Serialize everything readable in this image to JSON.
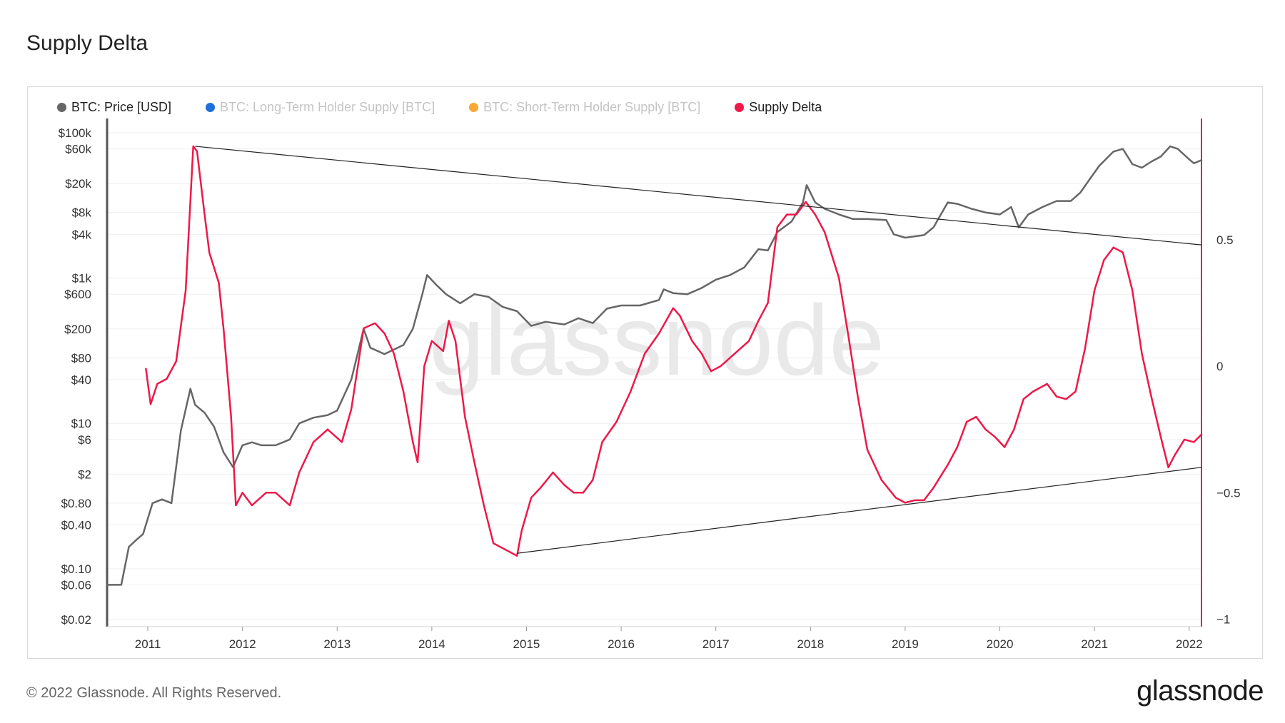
{
  "title": "Supply Delta",
  "footer": "© 2022 Glassnode. All Rights Reserved.",
  "brand": "glassnode",
  "watermark": "glassnode",
  "legend": [
    {
      "label": "BTC: Price [USD]",
      "color": "#666666",
      "active": true
    },
    {
      "label": "BTC: Long-Term Holder Supply [BTC]",
      "color": "#1e6fd9",
      "active": false
    },
    {
      "label": "BTC: Short-Term Holder Supply [BTC]",
      "color": "#f7a833",
      "active": false
    },
    {
      "label": "Supply Delta",
      "color": "#ee1849",
      "active": true
    }
  ],
  "chart_data": {
    "type": "line",
    "title": "Supply Delta",
    "x_ticks": [
      "2011",
      "2012",
      "2013",
      "2014",
      "2015",
      "2016",
      "2017",
      "2018",
      "2019",
      "2020",
      "2021",
      "2022"
    ],
    "xlim": [
      2010.57,
      2022.13
    ],
    "y_left": {
      "scale": "log",
      "ticks": [
        {
          "v": 100000,
          "label": "$100k"
        },
        {
          "v": 60000,
          "label": "$60k"
        },
        {
          "v": 20000,
          "label": "$20k"
        },
        {
          "v": 8000,
          "label": "$8k"
        },
        {
          "v": 4000,
          "label": "$4k"
        },
        {
          "v": 1000,
          "label": "$1k"
        },
        {
          "v": 600,
          "label": "$600"
        },
        {
          "v": 200,
          "label": "$200"
        },
        {
          "v": 80,
          "label": "$80"
        },
        {
          "v": 40,
          "label": "$40"
        },
        {
          "v": 10,
          "label": "$10"
        },
        {
          "v": 6,
          "label": "$6"
        },
        {
          "v": 2,
          "label": "$2"
        },
        {
          "v": 0.8,
          "label": "$0.80"
        },
        {
          "v": 0.4,
          "label": "$0.40"
        },
        {
          "v": 0.1,
          "label": "$0.10"
        },
        {
          "v": 0.06,
          "label": "$0.06"
        },
        {
          "v": 0.02,
          "label": "$0.02"
        }
      ]
    },
    "y_right": {
      "ticks": [
        {
          "v": 0.5,
          "label": "0.5"
        },
        {
          "v": 0,
          "label": "0"
        },
        {
          "v": -0.5,
          "label": "−0.5"
        },
        {
          "v": -1,
          "label": "−1"
        }
      ],
      "range": [
        -1.03,
        0.98
      ]
    },
    "series": [
      {
        "name": "BTC: Price [USD]",
        "axis": "left",
        "color": "#666666",
        "points": [
          [
            2010.57,
            0.06
          ],
          [
            2010.65,
            0.06
          ],
          [
            2010.72,
            0.06
          ],
          [
            2010.8,
            0.2
          ],
          [
            2010.88,
            0.25
          ],
          [
            2010.95,
            0.3
          ],
          [
            2011.05,
            0.8
          ],
          [
            2011.15,
            0.9
          ],
          [
            2011.25,
            0.8
          ],
          [
            2011.35,
            8
          ],
          [
            2011.45,
            30
          ],
          [
            2011.5,
            18
          ],
          [
            2011.6,
            14
          ],
          [
            2011.7,
            9
          ],
          [
            2011.8,
            4
          ],
          [
            2011.9,
            2.5
          ],
          [
            2012.0,
            5
          ],
          [
            2012.1,
            5.5
          ],
          [
            2012.2,
            5
          ],
          [
            2012.35,
            5
          ],
          [
            2012.5,
            6
          ],
          [
            2012.6,
            10
          ],
          [
            2012.75,
            12
          ],
          [
            2012.9,
            13
          ],
          [
            2013.0,
            15
          ],
          [
            2013.15,
            40
          ],
          [
            2013.28,
            200
          ],
          [
            2013.35,
            110
          ],
          [
            2013.5,
            90
          ],
          [
            2013.7,
            120
          ],
          [
            2013.8,
            200
          ],
          [
            2013.9,
            600
          ],
          [
            2013.95,
            1100
          ],
          [
            2014.05,
            800
          ],
          [
            2014.15,
            600
          ],
          [
            2014.3,
            450
          ],
          [
            2014.45,
            600
          ],
          [
            2014.6,
            550
          ],
          [
            2014.75,
            400
          ],
          [
            2014.9,
            350
          ],
          [
            2015.05,
            220
          ],
          [
            2015.2,
            250
          ],
          [
            2015.4,
            230
          ],
          [
            2015.55,
            280
          ],
          [
            2015.7,
            240
          ],
          [
            2015.85,
            380
          ],
          [
            2016.0,
            420
          ],
          [
            2016.2,
            420
          ],
          [
            2016.4,
            500
          ],
          [
            2016.45,
            700
          ],
          [
            2016.55,
            620
          ],
          [
            2016.7,
            600
          ],
          [
            2016.85,
            730
          ],
          [
            2017.0,
            950
          ],
          [
            2017.15,
            1100
          ],
          [
            2017.3,
            1400
          ],
          [
            2017.45,
            2500
          ],
          [
            2017.55,
            2400
          ],
          [
            2017.65,
            4300
          ],
          [
            2017.8,
            6000
          ],
          [
            2017.92,
            11000
          ],
          [
            2017.96,
            19000
          ],
          [
            2018.05,
            11000
          ],
          [
            2018.15,
            9000
          ],
          [
            2018.3,
            7500
          ],
          [
            2018.45,
            6500
          ],
          [
            2018.6,
            6500
          ],
          [
            2018.8,
            6300
          ],
          [
            2018.88,
            4000
          ],
          [
            2019.0,
            3600
          ],
          [
            2019.2,
            3900
          ],
          [
            2019.3,
            5000
          ],
          [
            2019.45,
            11000
          ],
          [
            2019.55,
            10500
          ],
          [
            2019.7,
            9000
          ],
          [
            2019.85,
            8000
          ],
          [
            2020.0,
            7500
          ],
          [
            2020.12,
            9500
          ],
          [
            2020.2,
            5000
          ],
          [
            2020.3,
            7500
          ],
          [
            2020.45,
            9500
          ],
          [
            2020.6,
            11500
          ],
          [
            2020.75,
            11500
          ],
          [
            2020.85,
            15000
          ],
          [
            2020.95,
            23000
          ],
          [
            2021.05,
            35000
          ],
          [
            2021.2,
            55000
          ],
          [
            2021.3,
            60000
          ],
          [
            2021.4,
            37000
          ],
          [
            2021.5,
            33000
          ],
          [
            2021.6,
            40000
          ],
          [
            2021.7,
            47000
          ],
          [
            2021.8,
            65000
          ],
          [
            2021.88,
            60000
          ],
          [
            2022.0,
            43000
          ],
          [
            2022.05,
            38000
          ],
          [
            2022.13,
            42000
          ]
        ]
      },
      {
        "name": "Supply Delta",
        "axis": "right",
        "color": "#ee1849",
        "points": [
          [
            2010.98,
            -0.01
          ],
          [
            2011.03,
            -0.15
          ],
          [
            2011.1,
            -0.07
          ],
          [
            2011.2,
            -0.05
          ],
          [
            2011.3,
            0.02
          ],
          [
            2011.4,
            0.3
          ],
          [
            2011.48,
            0.87
          ],
          [
            2011.52,
            0.85
          ],
          [
            2011.6,
            0.6
          ],
          [
            2011.65,
            0.45
          ],
          [
            2011.75,
            0.33
          ],
          [
            2011.8,
            0.15
          ],
          [
            2011.88,
            -0.2
          ],
          [
            2011.93,
            -0.55
          ],
          [
            2012.0,
            -0.5
          ],
          [
            2012.1,
            -0.55
          ],
          [
            2012.25,
            -0.5
          ],
          [
            2012.35,
            -0.5
          ],
          [
            2012.5,
            -0.55
          ],
          [
            2012.6,
            -0.42
          ],
          [
            2012.75,
            -0.3
          ],
          [
            2012.9,
            -0.25
          ],
          [
            2013.05,
            -0.3
          ],
          [
            2013.15,
            -0.17
          ],
          [
            2013.28,
            0.15
          ],
          [
            2013.4,
            0.17
          ],
          [
            2013.5,
            0.13
          ],
          [
            2013.6,
            0.05
          ],
          [
            2013.7,
            -0.1
          ],
          [
            2013.8,
            -0.3
          ],
          [
            2013.85,
            -0.38
          ],
          [
            2013.92,
            0.0
          ],
          [
            2014.0,
            0.1
          ],
          [
            2014.12,
            0.06
          ],
          [
            2014.18,
            0.18
          ],
          [
            2014.25,
            0.1
          ],
          [
            2014.35,
            -0.2
          ],
          [
            2014.45,
            -0.38
          ],
          [
            2014.55,
            -0.55
          ],
          [
            2014.65,
            -0.7
          ],
          [
            2014.75,
            -0.72
          ],
          [
            2014.8,
            -0.73
          ],
          [
            2014.9,
            -0.75
          ],
          [
            2014.95,
            -0.65
          ],
          [
            2015.05,
            -0.52
          ],
          [
            2015.15,
            -0.48
          ],
          [
            2015.28,
            -0.42
          ],
          [
            2015.4,
            -0.47
          ],
          [
            2015.5,
            -0.5
          ],
          [
            2015.6,
            -0.5
          ],
          [
            2015.7,
            -0.45
          ],
          [
            2015.8,
            -0.3
          ],
          [
            2015.95,
            -0.22
          ],
          [
            2016.1,
            -0.1
          ],
          [
            2016.25,
            0.05
          ],
          [
            2016.4,
            0.13
          ],
          [
            2016.55,
            0.23
          ],
          [
            2016.62,
            0.2
          ],
          [
            2016.75,
            0.1
          ],
          [
            2016.85,
            0.05
          ],
          [
            2016.95,
            -0.02
          ],
          [
            2017.05,
            0.0
          ],
          [
            2017.2,
            0.05
          ],
          [
            2017.35,
            0.1
          ],
          [
            2017.45,
            0.18
          ],
          [
            2017.55,
            0.25
          ],
          [
            2017.65,
            0.55
          ],
          [
            2017.75,
            0.6
          ],
          [
            2017.85,
            0.6
          ],
          [
            2017.95,
            0.65
          ],
          [
            2018.05,
            0.6
          ],
          [
            2018.15,
            0.53
          ],
          [
            2018.3,
            0.35
          ],
          [
            2018.4,
            0.12
          ],
          [
            2018.5,
            -0.12
          ],
          [
            2018.6,
            -0.33
          ],
          [
            2018.75,
            -0.45
          ],
          [
            2018.9,
            -0.52
          ],
          [
            2019.0,
            -0.54
          ],
          [
            2019.1,
            -0.53
          ],
          [
            2019.2,
            -0.53
          ],
          [
            2019.3,
            -0.48
          ],
          [
            2019.45,
            -0.39
          ],
          [
            2019.55,
            -0.32
          ],
          [
            2019.65,
            -0.22
          ],
          [
            2019.75,
            -0.2
          ],
          [
            2019.85,
            -0.25
          ],
          [
            2019.95,
            -0.28
          ],
          [
            2020.05,
            -0.32
          ],
          [
            2020.15,
            -0.25
          ],
          [
            2020.25,
            -0.13
          ],
          [
            2020.35,
            -0.1
          ],
          [
            2020.5,
            -0.07
          ],
          [
            2020.6,
            -0.12
          ],
          [
            2020.7,
            -0.13
          ],
          [
            2020.8,
            -0.1
          ],
          [
            2020.9,
            0.07
          ],
          [
            2021.0,
            0.3
          ],
          [
            2021.1,
            0.42
          ],
          [
            2021.2,
            0.47
          ],
          [
            2021.3,
            0.45
          ],
          [
            2021.4,
            0.3
          ],
          [
            2021.5,
            0.05
          ],
          [
            2021.6,
            -0.12
          ],
          [
            2021.7,
            -0.28
          ],
          [
            2021.78,
            -0.4
          ],
          [
            2021.85,
            -0.35
          ],
          [
            2021.95,
            -0.29
          ],
          [
            2022.05,
            -0.3
          ],
          [
            2022.13,
            -0.27
          ]
        ]
      }
    ],
    "trendlines": [
      {
        "axis": "right",
        "from": [
          2011.5,
          0.87
        ],
        "to": [
          2022.13,
          0.48
        ]
      },
      {
        "axis": "right",
        "from": [
          2014.9,
          -0.74
        ],
        "to": [
          2022.13,
          -0.4
        ]
      }
    ]
  }
}
